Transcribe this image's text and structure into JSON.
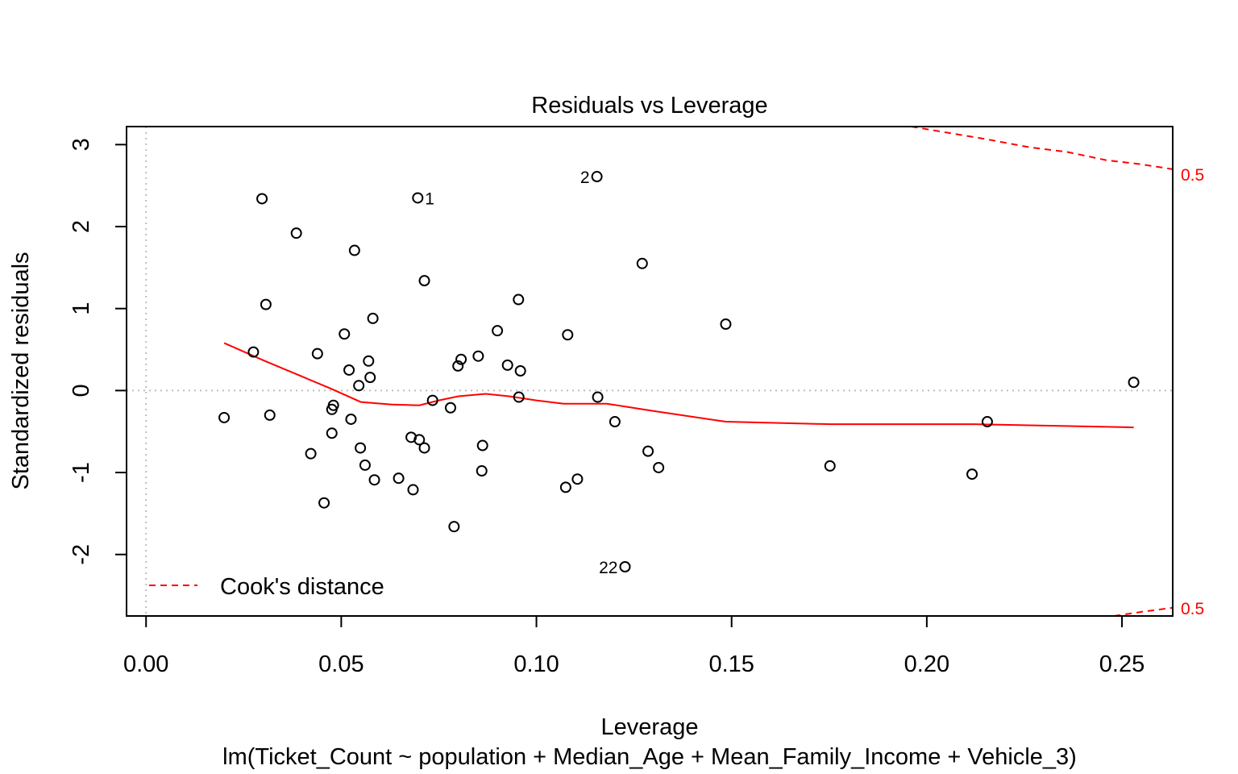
{
  "chart_data": {
    "type": "scatter",
    "title": "Residuals vs Leverage",
    "xlabel": "Leverage",
    "subtitle": "lm(Ticket_Count ~ population + Median_Age + Mean_Family_Income + Vehicle_3)",
    "ylabel": "Standardized residuals",
    "xlim": [
      -0.005,
      0.263
    ],
    "ylim": [
      -2.75,
      3.22
    ],
    "x_ticks": [
      0.0,
      0.05,
      0.1,
      0.15,
      0.2,
      0.25
    ],
    "x_tick_labels": [
      "0.00",
      "0.05",
      "0.10",
      "0.15",
      "0.20",
      "0.25"
    ],
    "y_ticks": [
      -2,
      -1,
      0,
      1,
      2,
      3
    ],
    "y_tick_labels": [
      "-2",
      "-1",
      "0",
      "1",
      "2",
      "3"
    ],
    "grid": false,
    "reference_lines": {
      "x": 0,
      "y": 0,
      "color": "#bdbdbd"
    },
    "points": [
      {
        "x": 0.02,
        "y": -0.33
      },
      {
        "x": 0.0275,
        "y": 0.47
      },
      {
        "x": 0.0297,
        "y": 2.34
      },
      {
        "x": 0.0307,
        "y": 1.05
      },
      {
        "x": 0.0317,
        "y": -0.3
      },
      {
        "x": 0.0385,
        "y": 1.92
      },
      {
        "x": 0.0422,
        "y": -0.77
      },
      {
        "x": 0.0439,
        "y": 0.45
      },
      {
        "x": 0.0456,
        "y": -1.37
      },
      {
        "x": 0.0476,
        "y": -0.23
      },
      {
        "x": 0.0476,
        "y": -0.52
      },
      {
        "x": 0.048,
        "y": -0.18
      },
      {
        "x": 0.0508,
        "y": 0.69
      },
      {
        "x": 0.052,
        "y": 0.25
      },
      {
        "x": 0.0525,
        "y": -0.35
      },
      {
        "x": 0.0534,
        "y": 1.71
      },
      {
        "x": 0.0545,
        "y": 0.06
      },
      {
        "x": 0.0549,
        "y": -0.7
      },
      {
        "x": 0.0561,
        "y": -0.91
      },
      {
        "x": 0.057,
        "y": 0.36
      },
      {
        "x": 0.0574,
        "y": 0.16
      },
      {
        "x": 0.0581,
        "y": 0.88
      },
      {
        "x": 0.0585,
        "y": -1.09
      },
      {
        "x": 0.0647,
        "y": -1.07
      },
      {
        "x": 0.0679,
        "y": -0.57
      },
      {
        "x": 0.0684,
        "y": -1.21
      },
      {
        "x": 0.0696,
        "y": 2.35,
        "label": "1"
      },
      {
        "x": 0.07,
        "y": -0.6
      },
      {
        "x": 0.0713,
        "y": 1.34
      },
      {
        "x": 0.0713,
        "y": -0.7
      },
      {
        "x": 0.0734,
        "y": -0.12
      },
      {
        "x": 0.078,
        "y": -0.21
      },
      {
        "x": 0.0789,
        "y": -1.66
      },
      {
        "x": 0.0799,
        "y": 0.3
      },
      {
        "x": 0.0807,
        "y": 0.38
      },
      {
        "x": 0.0851,
        "y": 0.42
      },
      {
        "x": 0.086,
        "y": -0.98
      },
      {
        "x": 0.0862,
        "y": -0.67
      },
      {
        "x": 0.09,
        "y": 0.73
      },
      {
        "x": 0.0926,
        "y": 0.31
      },
      {
        "x": 0.0954,
        "y": 1.11
      },
      {
        "x": 0.0955,
        "y": -0.08
      },
      {
        "x": 0.0959,
        "y": 0.24
      },
      {
        "x": 0.1075,
        "y": -1.18
      },
      {
        "x": 0.108,
        "y": 0.68
      },
      {
        "x": 0.1105,
        "y": -1.08
      },
      {
        "x": 0.1155,
        "y": 2.61,
        "label": "2"
      },
      {
        "x": 0.1157,
        "y": -0.08
      },
      {
        "x": 0.1201,
        "y": -0.38
      },
      {
        "x": 0.1227,
        "y": -2.15,
        "label": "22"
      },
      {
        "x": 0.1271,
        "y": 1.55
      },
      {
        "x": 0.1286,
        "y": -0.74
      },
      {
        "x": 0.1313,
        "y": -0.94
      },
      {
        "x": 0.1485,
        "y": 0.81
      },
      {
        "x": 0.1752,
        "y": -0.92
      },
      {
        "x": 0.2116,
        "y": -1.02
      },
      {
        "x": 0.2155,
        "y": -0.38
      },
      {
        "x": 0.253,
        "y": 0.1
      }
    ],
    "smoother": {
      "color": "#ff0000",
      "x": [
        0.02,
        0.03,
        0.04,
        0.047,
        0.055,
        0.063,
        0.07,
        0.075,
        0.08,
        0.087,
        0.093,
        0.1,
        0.107,
        0.118,
        0.13,
        0.1485,
        0.175,
        0.212,
        0.253
      ],
      "y": [
        0.58,
        0.37,
        0.17,
        0.03,
        -0.14,
        -0.17,
        -0.18,
        -0.12,
        -0.07,
        -0.04,
        -0.07,
        -0.12,
        -0.16,
        -0.16,
        -0.25,
        -0.38,
        -0.41,
        -0.41,
        -0.45
      ]
    },
    "cooks_distance": {
      "legend_label": "Cook's distance",
      "color": "#ff0000",
      "level_labels": [
        "0.5",
        "0.5"
      ],
      "upper": {
        "x": [
          0.196,
          0.206,
          0.216,
          0.226,
          0.236,
          0.246,
          0.255,
          0.263
        ],
        "y": [
          3.22,
          3.14,
          3.06,
          2.97,
          2.91,
          2.81,
          2.76,
          2.7
        ]
      },
      "lower": {
        "x": [
          0.248,
          0.255,
          0.263
        ],
        "y": [
          -2.75,
          -2.7,
          -2.65
        ]
      }
    }
  }
}
